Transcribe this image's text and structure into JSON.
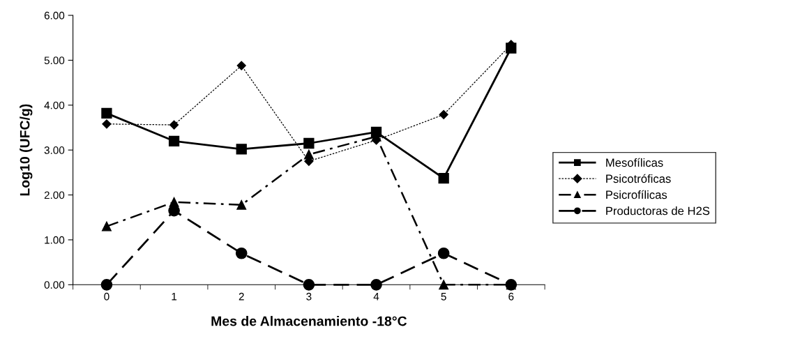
{
  "chart_data": {
    "type": "line",
    "xlabel": "Mes de Almacenamiento -18°C",
    "ylabel": "Log10 (UFC/g)",
    "categories": [
      "0",
      "1",
      "2",
      "3",
      "4",
      "5",
      "6"
    ],
    "ylim": [
      0,
      6
    ],
    "yticks": [
      {
        "value": 0,
        "label": "0.00"
      },
      {
        "value": 1,
        "label": "1.00"
      },
      {
        "value": 2,
        "label": "2.00"
      },
      {
        "value": 3,
        "label": "3.00"
      },
      {
        "value": 4,
        "label": "4.00"
      },
      {
        "value": 5,
        "label": "5.00"
      },
      {
        "value": 6,
        "label": "6.00"
      }
    ],
    "grid": false,
    "legend": "right",
    "series": [
      {
        "name": "Mesofílicas",
        "color": "#000000",
        "marker": "square",
        "line_style": "solid",
        "values": [
          3.82,
          3.2,
          3.02,
          3.15,
          3.4,
          2.37,
          5.27
        ]
      },
      {
        "name": "Psicotróficas",
        "color": "#000000",
        "marker": "diamond",
        "line_style": "dotted",
        "values": [
          3.58,
          3.56,
          4.88,
          2.75,
          3.22,
          3.79,
          5.35
        ]
      },
      {
        "name": "Psicrofílicas",
        "color": "#000000",
        "marker": "triangle",
        "line_style": "dashdot",
        "values": [
          1.3,
          1.84,
          1.78,
          2.9,
          3.3,
          0,
          0
        ]
      },
      {
        "name": "Productoras de H2S",
        "color": "#000000",
        "marker": "circle",
        "line_style": "dashed",
        "values": [
          0,
          1.65,
          0.7,
          0,
          0,
          0.7,
          0
        ]
      }
    ]
  }
}
